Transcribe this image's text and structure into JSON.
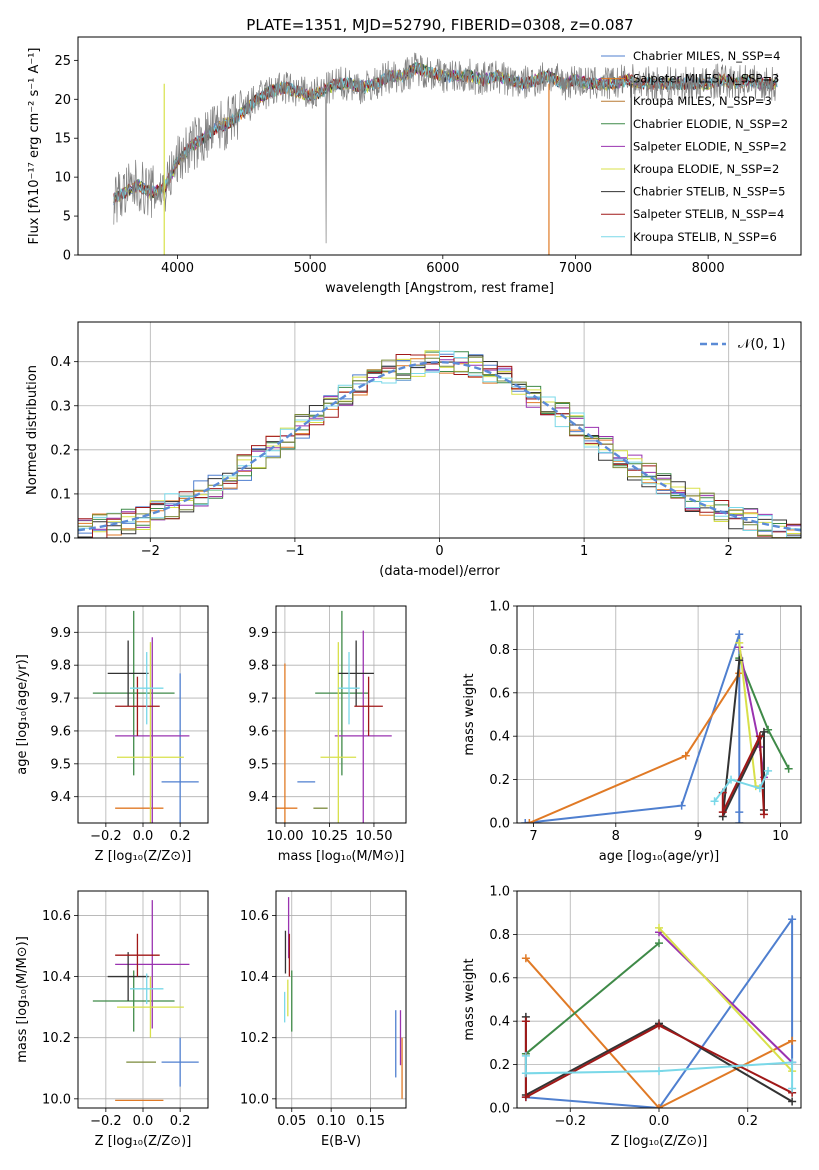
{
  "title": "PLATE=1351, MJD=52790, FIBERID=0308, z=0.087",
  "colors": [
    "#4f7fcf",
    "#e07a26",
    "#7a8a3a",
    "#3f8a48",
    "#9a33b0",
    "#d8e04a",
    "#333333",
    "#a01818",
    "#7ad8e8"
  ],
  "chart_data": [
    {
      "id": "spectrum",
      "type": "line",
      "xlabel": "wavelength [Angstrom, rest frame]",
      "ylabel": "Flux [fλ10⁻¹⁷ erg cm⁻² s⁻¹ A⁻¹]",
      "xlim": [
        3250,
        8700
      ],
      "ylim": [
        0,
        28
      ],
      "xticks": [
        "4000",
        "5000",
        "6000",
        "7000",
        "8000"
      ],
      "yticks": [
        "0",
        "5",
        "10",
        "15",
        "20",
        "25"
      ],
      "legend_position": "upper-right",
      "series": [
        {
          "name": "Chabrier MILES, N_SSP=4",
          "color": "#4f7fcf"
        },
        {
          "name": "Salpeter MILES, N_SSP=3",
          "color": "#e07a26"
        },
        {
          "name": "Kroupa MILES, N_SSP=3",
          "color": "#b87a33"
        },
        {
          "name": "Chabrier ELODIE, N_SSP=2",
          "color": "#3f8a48"
        },
        {
          "name": "Salpeter ELODIE, N_SSP=2",
          "color": "#9a33b0"
        },
        {
          "name": "Kroupa ELODIE, N_SSP=2",
          "color": "#d8e04a"
        },
        {
          "name": "Chabrier STELIB, N_SSP=5",
          "color": "#333333"
        },
        {
          "name": "Salpeter STELIB, N_SSP=4",
          "color": "#a01818"
        },
        {
          "name": "Kroupa STELIB, N_SSP=6",
          "color": "#7ad8e8"
        }
      ],
      "data_line": {
        "color": "#808080"
      },
      "continuum": {
        "x": [
          3500,
          3600,
          3700,
          3800,
          3900,
          4000,
          4100,
          4200,
          4300,
          4400,
          4500,
          4600,
          4700,
          4800,
          4900,
          5000,
          5100,
          5200,
          5300,
          5400,
          5500,
          5600,
          5700,
          5800,
          5900,
          6000,
          6100,
          6200,
          6300,
          6400,
          6500,
          6600,
          6700,
          6800,
          6900,
          7000,
          7100,
          7200,
          7300,
          7400,
          7500,
          7600,
          7700,
          7800,
          7900,
          8000,
          8100,
          8200,
          8300,
          8400,
          8500
        ],
        "y": [
          7,
          8,
          9,
          8,
          8.5,
          12,
          14,
          15,
          16.5,
          17,
          18.5,
          20,
          21,
          21.5,
          21,
          20.5,
          21,
          22,
          22,
          21.5,
          22,
          23,
          23,
          24,
          23.5,
          23,
          23,
          23,
          22.5,
          23,
          22.5,
          22,
          22.5,
          23,
          22,
          22.5,
          22,
          22,
          22,
          22.5,
          22,
          22,
          22,
          22,
          22,
          22,
          22.5,
          22,
          22.5,
          22,
          22
        ]
      }
    },
    {
      "id": "residuals",
      "type": "bar",
      "xlabel": "(data-model)/error",
      "ylabel": "Normed distribution",
      "xlim": [
        -2.5,
        2.5
      ],
      "ylim": [
        0,
        0.49
      ],
      "xticks": [
        "−2",
        "−1",
        "0",
        "1",
        "2"
      ],
      "yticks": [
        "0.0",
        "0.1",
        "0.2",
        "0.3",
        "0.4"
      ],
      "legend": "𝒩(0, 1)",
      "legend_position": "upper-right",
      "bin_width": 0.1,
      "grid": true
    },
    {
      "id": "z-age",
      "type": "scatter",
      "xlabel": "Z [log₁₀(Z/Z⊙)]",
      "ylabel": "age  [log₁₀(age/yr)]",
      "xlim": [
        -0.35,
        0.35
      ],
      "ylim": [
        9.32,
        9.98
      ],
      "xticks": [
        "−0.2",
        "0.0",
        "0.2"
      ],
      "yticks": [
        "9.4",
        "9.5",
        "9.6",
        "9.7",
        "9.8",
        "9.9"
      ],
      "grid": true,
      "points": [
        {
          "x": 0.2,
          "y": 9.445,
          "xerr": 0.1,
          "yerr": 0.33,
          "c": 0
        },
        {
          "x": -0.02,
          "y": 9.365,
          "xerr": 0.13,
          "yerr": 0.0,
          "c": 1
        },
        {
          "x": -0.05,
          "y": 9.715,
          "xerr": 0.22,
          "yerr": 0.25,
          "c": 3
        },
        {
          "x": 0.05,
          "y": 9.585,
          "xerr": 0.2,
          "yerr": 0.3,
          "c": 4
        },
        {
          "x": 0.04,
          "y": 9.52,
          "xerr": 0.18,
          "yerr": 0.35,
          "c": 5
        },
        {
          "x": -0.08,
          "y": 9.775,
          "xerr": 0.11,
          "yerr": 0.1,
          "c": 6
        },
        {
          "x": -0.03,
          "y": 9.675,
          "xerr": 0.12,
          "yerr": 0.09,
          "c": 7
        },
        {
          "x": 0.02,
          "y": 9.73,
          "xerr": 0.09,
          "yerr": 0.11,
          "c": 8
        }
      ]
    },
    {
      "id": "mass-age",
      "type": "scatter",
      "xlabel": "mass [log₁₀(M/M⊙)]",
      "xlim": [
        9.95,
        10.68
      ],
      "ylim": [
        9.32,
        9.98
      ],
      "xticks": [
        "10.00",
        "10.25",
        "10.50"
      ],
      "yticks": [
        "9.4",
        "9.5",
        "9.6",
        "9.7",
        "9.8",
        "9.9"
      ],
      "grid": true,
      "points": [
        {
          "x": 10.12,
          "y": 9.445,
          "xerr": 0.05,
          "yerr": 0.0,
          "c": 0
        },
        {
          "x": 10.0,
          "y": 9.365,
          "xerr": 0.07,
          "yerr": 0.44,
          "c": 1
        },
        {
          "x": 10.32,
          "y": 9.715,
          "xerr": 0.15,
          "yerr": 0.25,
          "c": 3
        },
        {
          "x": 10.44,
          "y": 9.585,
          "xerr": 0.16,
          "yerr": 0.32,
          "c": 4
        },
        {
          "x": 10.3,
          "y": 9.52,
          "xerr": 0.1,
          "yerr": 0.35,
          "c": 5
        },
        {
          "x": 10.4,
          "y": 9.775,
          "xerr": 0.1,
          "yerr": 0.1,
          "c": 6
        },
        {
          "x": 10.47,
          "y": 9.675,
          "xerr": 0.08,
          "yerr": 0.09,
          "c": 7
        },
        {
          "x": 10.36,
          "y": 9.73,
          "xerr": 0.06,
          "yerr": 0.11,
          "c": 8
        },
        {
          "x": 10.2,
          "y": 9.365,
          "xerr": 0.04,
          "yerr": 0.0,
          "c": 2
        }
      ]
    },
    {
      "id": "age-weight",
      "type": "line",
      "xlabel": "age  [log₁₀(age/yr)]",
      "ylabel": "mass weight",
      "xlim": [
        6.8,
        10.25
      ],
      "ylim": [
        0,
        1.0
      ],
      "xticks": [
        "7",
        "8",
        "9",
        "10"
      ],
      "yticks": [
        "0.0",
        "0.2",
        "0.4",
        "0.6",
        "0.8",
        "1.0"
      ],
      "grid": true,
      "series": [
        {
          "c": 0,
          "x": [
            6.9,
            8.8,
            9.5,
            9.5,
            9.5
          ],
          "y": [
            0.0,
            0.08,
            0.87,
            0.05,
            0.0
          ]
        },
        {
          "c": 1,
          "x": [
            6.95,
            8.85,
            9.5
          ],
          "y": [
            0.0,
            0.31,
            0.69
          ]
        },
        {
          "c": 3,
          "x": [
            9.5,
            9.85,
            10.1
          ],
          "y": [
            0.76,
            0.43,
            0.25
          ]
        },
        {
          "c": 4,
          "x": [
            9.5,
            9.75,
            9.8
          ],
          "y": [
            0.81,
            0.35,
            0.21
          ]
        },
        {
          "c": 5,
          "x": [
            9.5,
            9.7
          ],
          "y": [
            0.83,
            0.17
          ]
        },
        {
          "c": 6,
          "x": [
            9.5,
            9.3,
            9.8,
            9.8
          ],
          "y": [
            0.75,
            0.03,
            0.42,
            0.06
          ]
        },
        {
          "c": 7,
          "x": [
            9.3,
            9.3,
            9.75,
            9.8
          ],
          "y": [
            0.14,
            0.05,
            0.4,
            0.04
          ]
        },
        {
          "c": 8,
          "x": [
            9.2,
            9.4,
            9.75,
            9.85
          ],
          "y": [
            0.1,
            0.2,
            0.16,
            0.24
          ]
        }
      ]
    },
    {
      "id": "z-mass",
      "type": "scatter",
      "xlabel": "Z [log₁₀(Z/Z⊙)]",
      "ylabel": "mass [log₁₀(M/M⊙)]",
      "xlim": [
        -0.35,
        0.35
      ],
      "ylim": [
        9.97,
        10.68
      ],
      "xticks": [
        "−0.2",
        "0.0",
        "0.2"
      ],
      "yticks": [
        "10.0",
        "10.2",
        "10.4",
        "10.6"
      ],
      "grid": true,
      "points": [
        {
          "x": 0.2,
          "y": 10.12,
          "xerr": 0.1,
          "yerr": 0.08,
          "c": 0
        },
        {
          "x": -0.02,
          "y": 9.995,
          "xerr": 0.13,
          "yerr": 0.0,
          "c": 1
        },
        {
          "x": -0.05,
          "y": 10.32,
          "xerr": 0.22,
          "yerr": 0.1,
          "c": 3
        },
        {
          "x": 0.05,
          "y": 10.44,
          "xerr": 0.2,
          "yerr": 0.21,
          "c": 4
        },
        {
          "x": 0.04,
          "y": 10.3,
          "xerr": 0.18,
          "yerr": 0.1,
          "c": 5
        },
        {
          "x": -0.08,
          "y": 10.4,
          "xerr": 0.11,
          "yerr": 0.08,
          "c": 6
        },
        {
          "x": -0.03,
          "y": 10.47,
          "xerr": 0.12,
          "yerr": 0.07,
          "c": 7
        },
        {
          "x": 0.02,
          "y": 10.36,
          "xerr": 0.09,
          "yerr": 0.05,
          "c": 8
        },
        {
          "x": -0.01,
          "y": 10.12,
          "xerr": 0.08,
          "yerr": 0.0,
          "c": 2
        }
      ]
    },
    {
      "id": "ebv-mass",
      "type": "scatter",
      "xlabel": "E(B-V)",
      "xlim": [
        0.03,
        0.195
      ],
      "ylim": [
        9.97,
        10.68
      ],
      "xticks": [
        "0.05",
        "0.10",
        "0.15"
      ],
      "yticks": [
        "10.0",
        "10.2",
        "10.4",
        "10.6"
      ],
      "grid": true,
      "points": [
        {
          "x": 0.182,
          "y": 10.18,
          "yerr": 0.11,
          "c": 0
        },
        {
          "x": 0.19,
          "y": 10.1,
          "yerr": 0.1,
          "c": 1
        },
        {
          "x": 0.05,
          "y": 10.32,
          "yerr": 0.1,
          "c": 3
        },
        {
          "x": 0.046,
          "y": 10.56,
          "yerr": 0.1,
          "c": 4
        },
        {
          "x": 0.045,
          "y": 10.33,
          "yerr": 0.06,
          "c": 5
        },
        {
          "x": 0.042,
          "y": 10.48,
          "yerr": 0.07,
          "c": 6
        },
        {
          "x": 0.047,
          "y": 10.47,
          "yerr": 0.07,
          "c": 7
        },
        {
          "x": 0.041,
          "y": 10.3,
          "yerr": 0.05,
          "c": 8
        },
        {
          "x": 0.188,
          "y": 10.2,
          "yerr": 0.09,
          "c": 4
        }
      ]
    },
    {
      "id": "z-weight",
      "type": "line",
      "xlabel": "Z [log₁₀(Z/Z⊙)]",
      "ylabel": "mass weight",
      "xlim": [
        -0.32,
        0.32
      ],
      "ylim": [
        0,
        1.0
      ],
      "xticks": [
        "−0.2",
        "0.0",
        "0.2"
      ],
      "yticks": [
        "0.0",
        "0.2",
        "0.4",
        "0.6",
        "0.8",
        "1.0"
      ],
      "grid": true,
      "series": [
        {
          "c": 0,
          "x": [
            -0.3,
            0.0,
            0.3,
            0.3
          ],
          "y": [
            0.05,
            0.0,
            0.87,
            0.21
          ]
        },
        {
          "c": 1,
          "x": [
            -0.3,
            0.0,
            0.3
          ],
          "y": [
            0.69,
            0.0,
            0.31
          ]
        },
        {
          "c": 3,
          "x": [
            -0.3,
            0.0
          ],
          "y": [
            0.25,
            0.76
          ]
        },
        {
          "c": 4,
          "x": [
            0.0,
            0.3
          ],
          "y": [
            0.81,
            0.21
          ]
        },
        {
          "c": 5,
          "x": [
            0.0,
            0.3
          ],
          "y": [
            0.83,
            0.17
          ]
        },
        {
          "c": 6,
          "x": [
            -0.3,
            -0.3,
            0.0,
            0.3
          ],
          "y": [
            0.42,
            0.06,
            0.39,
            0.03
          ]
        },
        {
          "c": 7,
          "x": [
            -0.3,
            -0.3,
            0.0,
            0.3
          ],
          "y": [
            0.4,
            0.05,
            0.38,
            0.07
          ]
        },
        {
          "c": 8,
          "x": [
            -0.3,
            -0.3,
            0.0,
            0.3,
            0.3
          ],
          "y": [
            0.24,
            0.16,
            0.17,
            0.21,
            0.09
          ]
        }
      ]
    }
  ]
}
